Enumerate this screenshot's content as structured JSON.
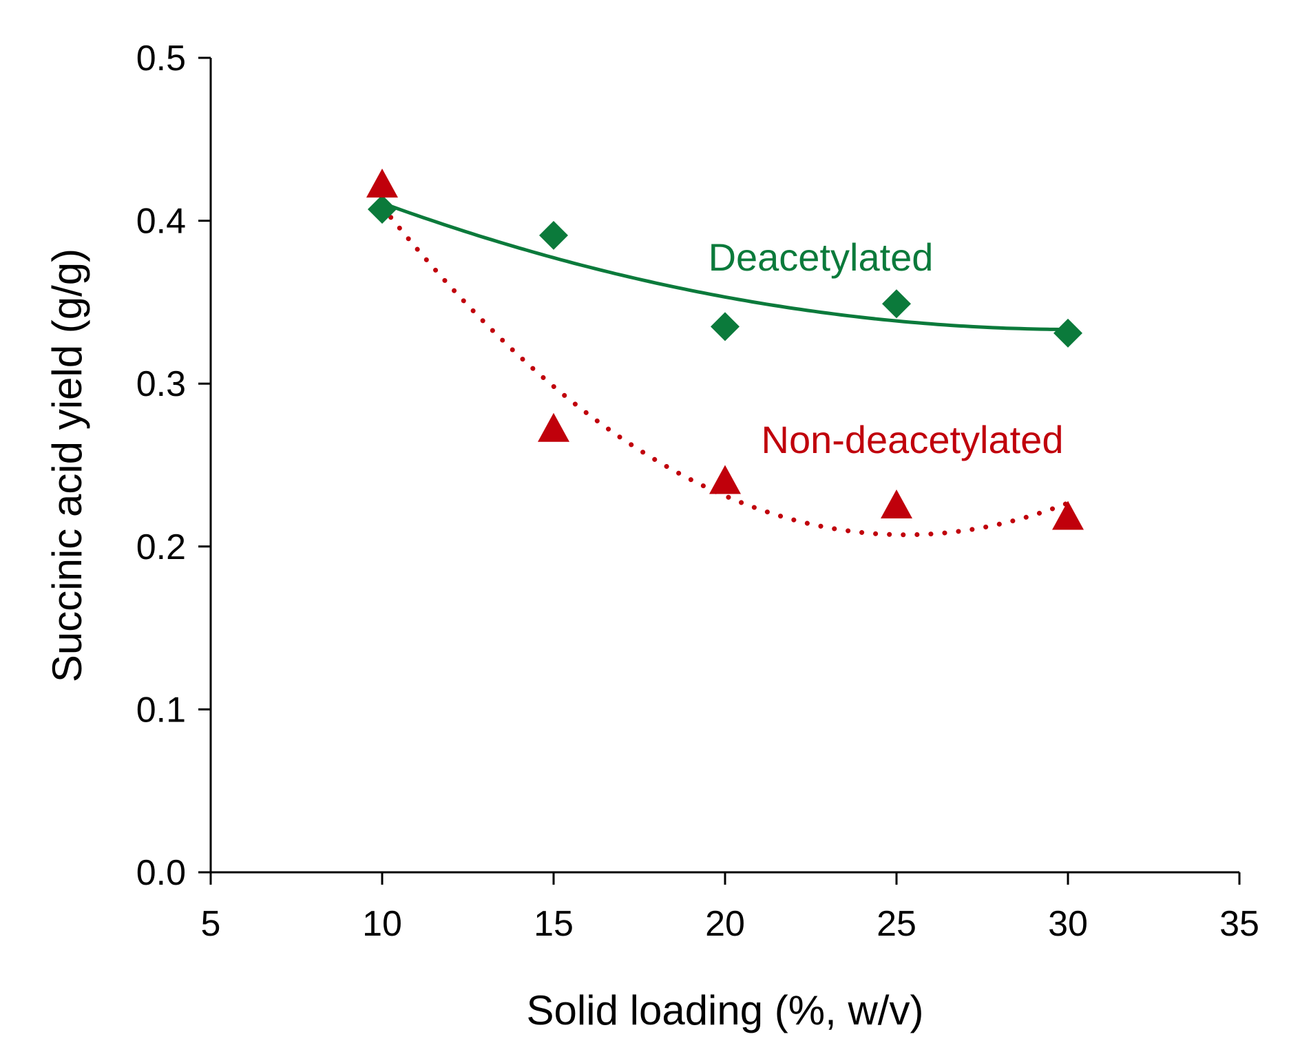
{
  "chart_data": {
    "type": "scatter",
    "xlabel": "Solid loading (%, w/v)",
    "ylabel": "Succinic acid yield (g/g)",
    "xlim": [
      5,
      35
    ],
    "ylim": [
      0.0,
      0.5
    ],
    "xticks": [
      "5",
      "10",
      "15",
      "20",
      "25",
      "30",
      "35"
    ],
    "yticks": [
      "0.0",
      "0.1",
      "0.2",
      "0.3",
      "0.4",
      "0.5"
    ],
    "grid": false,
    "legend": "none",
    "series": [
      {
        "name": "Deacetylated",
        "marker": "diamond",
        "color": "#0b7a3b",
        "trendline": "solid polynomial",
        "points": [
          {
            "x": 10,
            "y": 0.407
          },
          {
            "x": 15,
            "y": 0.391
          },
          {
            "x": 20,
            "y": 0.335
          },
          {
            "x": 25,
            "y": 0.349
          },
          {
            "x": 30,
            "y": 0.331
          }
        ]
      },
      {
        "name": "Non-deacetylated",
        "marker": "triangle",
        "color": "#c0000b",
        "trendline": "dotted polynomial",
        "points": [
          {
            "x": 10,
            "y": 0.421
          },
          {
            "x": 15,
            "y": 0.271
          },
          {
            "x": 20,
            "y": 0.239
          },
          {
            "x": 25,
            "y": 0.224
          },
          {
            "x": 30,
            "y": 0.217
          }
        ]
      }
    ]
  }
}
